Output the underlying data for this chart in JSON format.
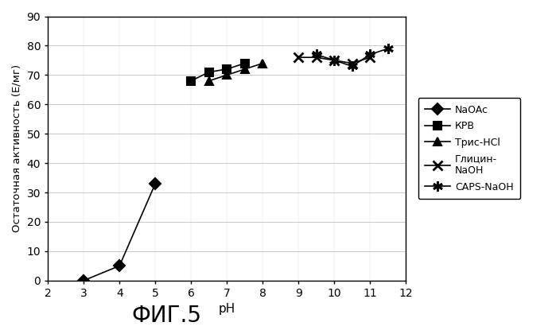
{
  "title": "ФИГ.5",
  "ylabel": "Остаточная активность (Е/мг)",
  "xlabel": "pH",
  "xlim": [
    2,
    12
  ],
  "ylim": [
    0,
    90
  ],
  "xticks": [
    2,
    3,
    4,
    5,
    6,
    7,
    8,
    9,
    10,
    11,
    12
  ],
  "yticks": [
    0,
    10,
    20,
    30,
    40,
    50,
    60,
    70,
    80,
    90
  ],
  "series": [
    {
      "label": "NaOAc",
      "x": [
        3,
        4,
        5
      ],
      "y": [
        0,
        5,
        33
      ],
      "marker": "D",
      "markersize": 7,
      "linestyle": "-",
      "color": "black",
      "zorder": 5
    },
    {
      "label": "КРВ",
      "x": [
        6,
        6.5,
        7,
        7.5
      ],
      "y": [
        68,
        71,
        72,
        74
      ],
      "marker": "s",
      "markersize": 7,
      "linestyle": "-",
      "color": "black",
      "zorder": 4
    },
    {
      "label": "Трис-HCl",
      "x": [
        6.5,
        7,
        7.5,
        8
      ],
      "y": [
        68,
        70,
        72,
        74
      ],
      "marker": "^",
      "markersize": 7,
      "linestyle": "-",
      "color": "black",
      "zorder": 3
    },
    {
      "label": "Глицин-\nNaOH",
      "x": [
        9,
        9.5,
        10,
        10.5,
        11
      ],
      "y": [
        76,
        76,
        75,
        74,
        76
      ],
      "marker": "x",
      "markersize": 8,
      "linestyle": "-",
      "color": "black",
      "zorder": 2,
      "markeredgewidth": 2
    },
    {
      "label": "CAPS-NaOH",
      "x": [
        9.5,
        10,
        10.5,
        11,
        11.5
      ],
      "y": [
        77,
        75,
        73,
        77,
        79
      ],
      "marker": "x",
      "markersize": 9,
      "linestyle": "-",
      "color": "black",
      "zorder": 1,
      "markeredgewidth": 2,
      "use_plus_marker": true
    }
  ],
  "background_color": "#ffffff",
  "plot_bg_color": "#ffffff",
  "figsize": [
    6.99,
    4.15
  ],
  "dpi": 100
}
